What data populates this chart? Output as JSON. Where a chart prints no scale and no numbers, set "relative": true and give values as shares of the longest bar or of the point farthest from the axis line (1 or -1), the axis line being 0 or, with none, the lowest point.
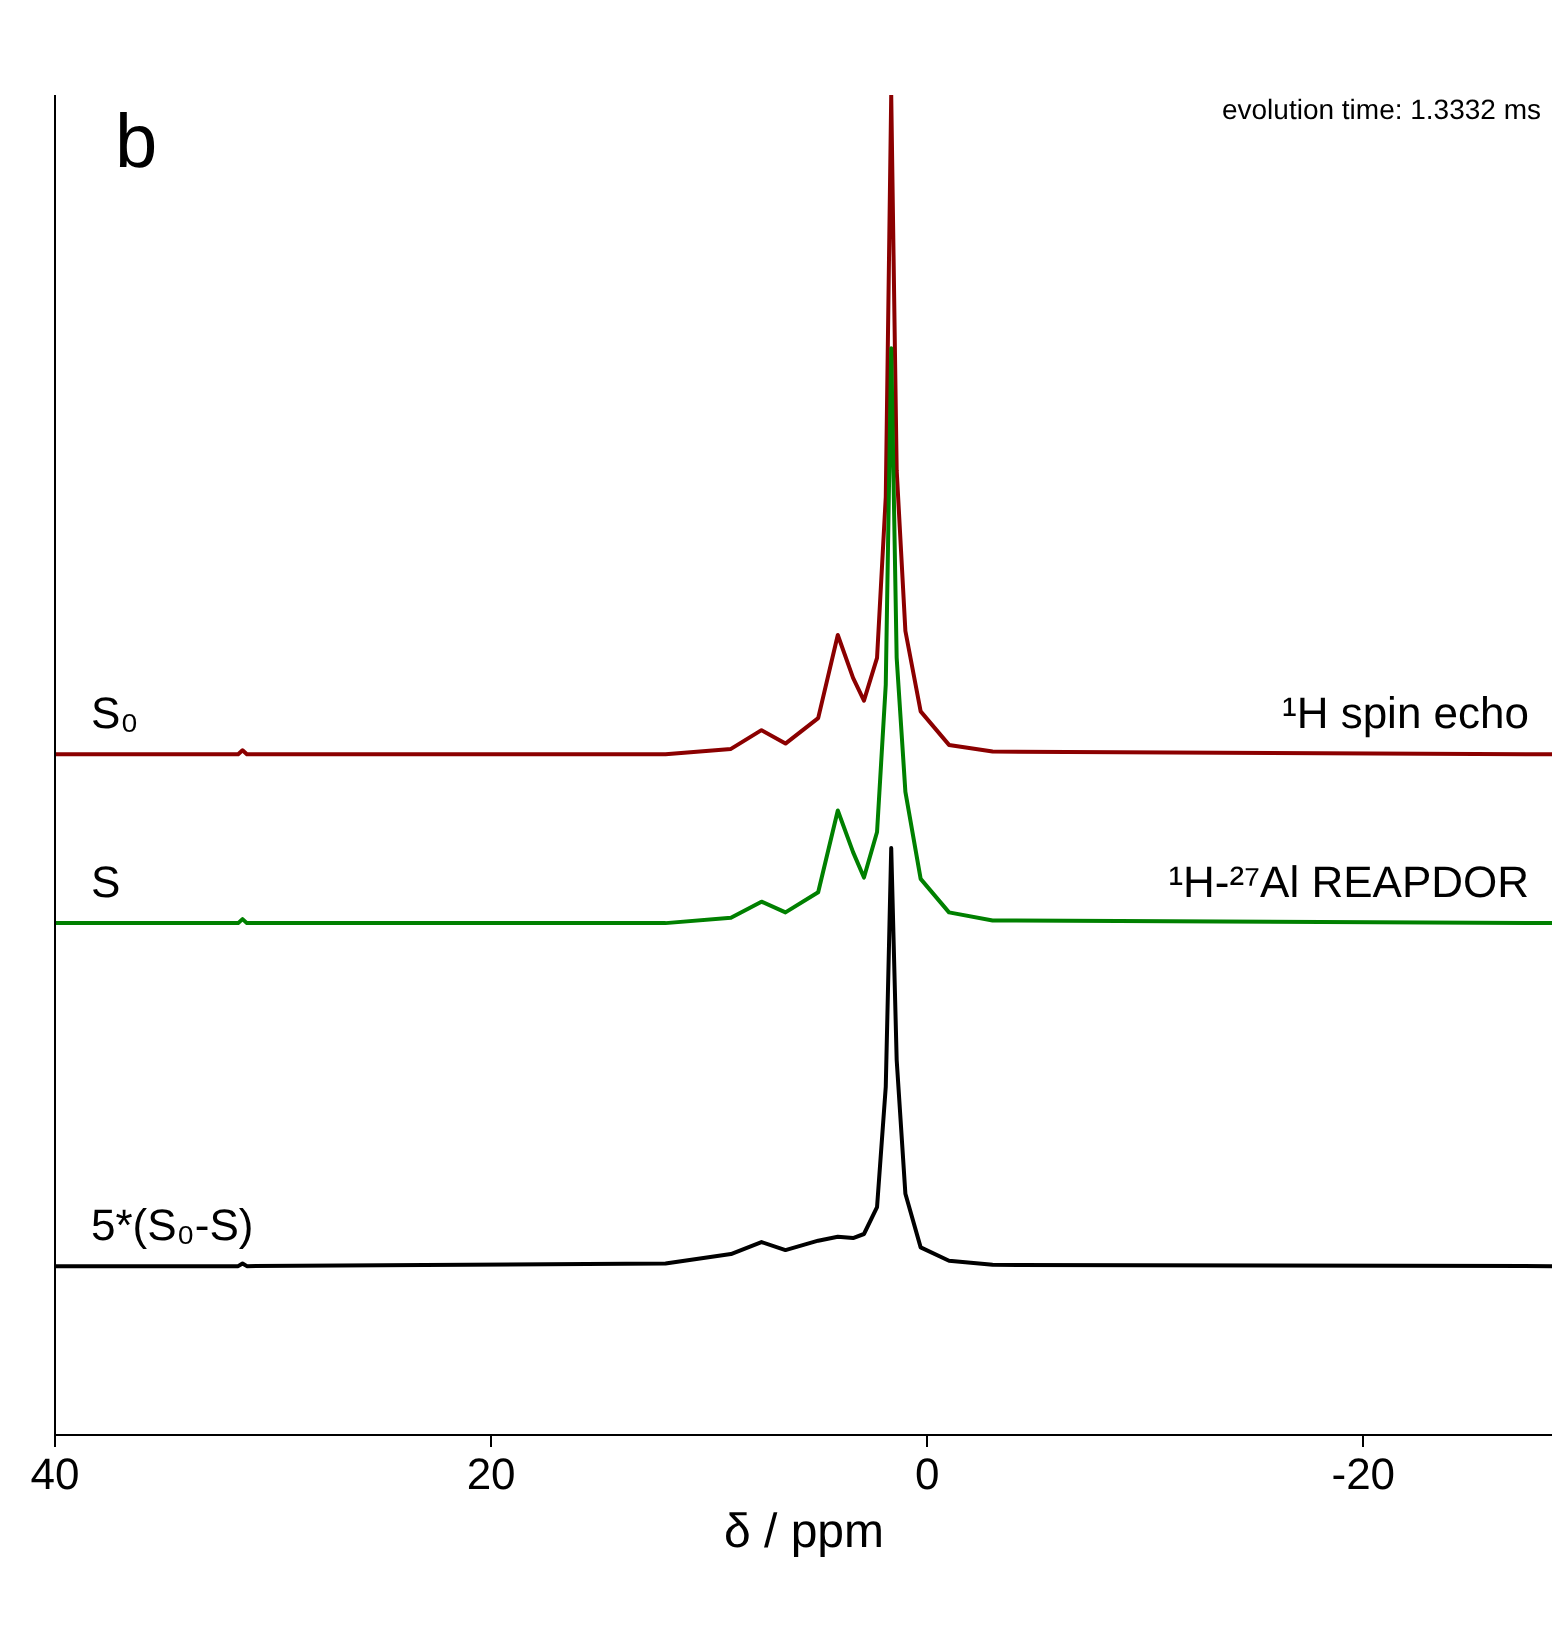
{
  "chart_data": {
    "type": "line",
    "relative": true,
    "xlabel": "δ / ppm",
    "xlim": [
      40,
      -28.7
    ],
    "xticks": [
      40,
      20,
      0,
      -20
    ],
    "grid": false,
    "marker": "none",
    "line_style": "solid",
    "annotations": [
      "b",
      "evolution time: 1.3332 ms",
      "¹H spin echo",
      "¹H-²⁷Al REAPDOR"
    ],
    "x": [
      40,
      31.6,
      31.4,
      31.2,
      12,
      9,
      7.6,
      6.5,
      5,
      4.1,
      3.4,
      2.9,
      2.3,
      1.9,
      1.65,
      1.4,
      1.0,
      0.3,
      -1,
      -3,
      -28.7
    ],
    "series": [
      {
        "name": "S₀",
        "color": "#8b0000",
        "values": [
          0.508,
          0.508,
          0.511,
          0.508,
          0.508,
          0.512,
          0.526,
          0.516,
          0.535,
          0.597,
          0.565,
          0.548,
          0.58,
          0.7,
          1.0,
          0.72,
          0.6,
          0.54,
          0.515,
          0.51,
          0.508
        ]
      },
      {
        "name": "S",
        "color": "#008000",
        "values": [
          0.382,
          0.382,
          0.385,
          0.382,
          0.382,
          0.386,
          0.398,
          0.39,
          0.405,
          0.466,
          0.435,
          0.416,
          0.45,
          0.56,
          0.811,
          0.58,
          0.48,
          0.415,
          0.39,
          0.384,
          0.382
        ]
      },
      {
        "name": "5*(S₀-S)",
        "color": "#000000",
        "values": [
          0.126,
          0.126,
          0.128,
          0.126,
          0.128,
          0.135,
          0.144,
          0.138,
          0.145,
          0.148,
          0.147,
          0.15,
          0.17,
          0.26,
          0.438,
          0.28,
          0.18,
          0.14,
          0.13,
          0.127,
          0.126
        ]
      }
    ]
  }
}
